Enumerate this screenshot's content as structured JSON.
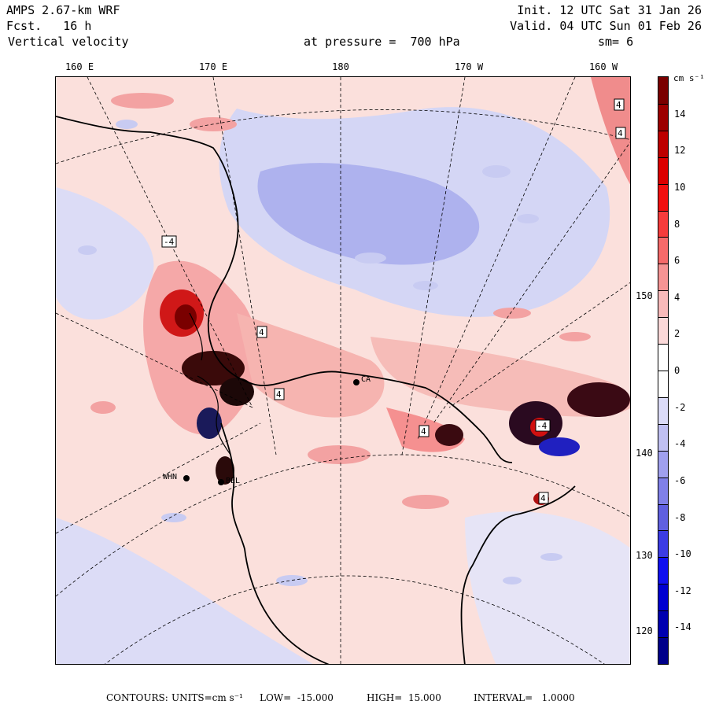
{
  "header": {
    "model": "AMPS 2.67-km WRF",
    "fcst_label": "Fcst.",
    "fcst_value": "16 h",
    "field": "Vertical velocity",
    "init": "Init. 12 UTC Sat 31 Jan 26",
    "valid": "Valid. 04 UTC Sun 01 Feb 26",
    "level_label": "at pressure =",
    "level_value": "700 hPa",
    "smoothing": "sm= 6"
  },
  "longitude_ticks": [
    "160 E",
    "170 E",
    "180",
    "170 W",
    "160 W"
  ],
  "latitude_ticks": [
    "150 W",
    "140 W",
    "130 W",
    "120 W"
  ],
  "colorbar": {
    "unit": "cm s⁻¹",
    "labels": [
      "14",
      "12",
      "10",
      "8",
      "6",
      "4",
      "2",
      "0",
      "-2",
      "-4",
      "-6",
      "-8",
      "-10",
      "-12",
      "-14"
    ],
    "colors": [
      "#7a0000",
      "#9c0000",
      "#bd0000",
      "#dc0000",
      "#f21010",
      "#f53c3c",
      "#f56a6a",
      "#f59494",
      "#f8baba",
      "#fbd9d9",
      "#ffffff",
      "#ffffff",
      "#dcdcf8",
      "#c0c0f2",
      "#a0a0ee",
      "#8080e8",
      "#6060e0",
      "#3c3ce4",
      "#1010f0",
      "#0000d0",
      "#0000b0",
      "#00008a"
    ]
  },
  "stations": [
    {
      "label": "WHN"
    },
    {
      "label": "BEL"
    },
    {
      "label": "CA"
    }
  ],
  "contour_labels": [
    "-4",
    "4",
    "4",
    "4",
    "4",
    "4",
    "4",
    "-4"
  ],
  "footer": {
    "contours": "CONTOURS:",
    "units": "UNITS=cm s⁻¹",
    "low": "LOW=  -15.000",
    "high": "HIGH=  15.000",
    "interval": "INTERVAL=   1.0000"
  }
}
